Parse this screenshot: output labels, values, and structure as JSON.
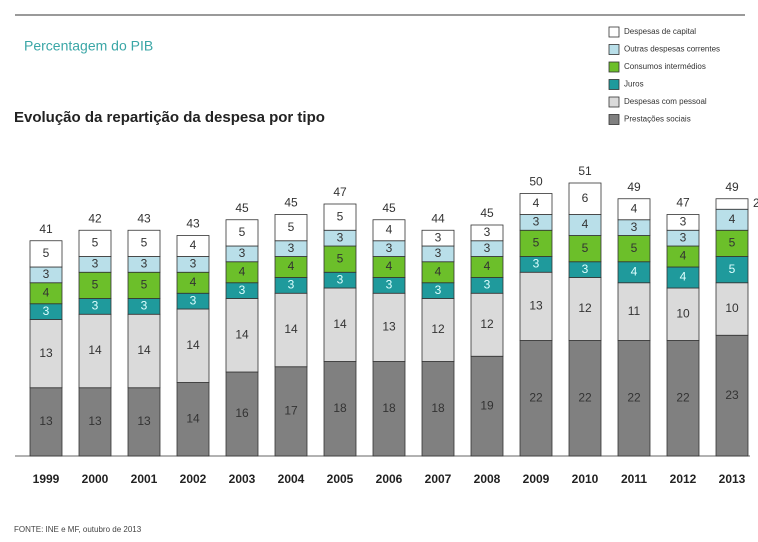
{
  "chart_data": {
    "type": "stacked-bar",
    "subtitle": "Percentagem do PIB",
    "title": "Evolução da repartição da despesa por tipo",
    "source": "FONTE: INE e MF, outubro de 2013",
    "categories": [
      "1999",
      "2000",
      "2001",
      "2002",
      "2003",
      "2004",
      "2005",
      "2006",
      "2007",
      "2008",
      "2009",
      "2010",
      "2011",
      "2012",
      "2013"
    ],
    "series": [
      {
        "name": "Prestações sociais",
        "color": "#808080",
        "values": [
          13,
          13,
          13,
          14,
          16,
          17,
          18,
          18,
          18,
          19,
          22,
          22,
          22,
          22,
          23
        ]
      },
      {
        "name": "Despesas com pessoal",
        "color": "#dadada",
        "values": [
          13,
          14,
          14,
          14,
          14,
          14,
          14,
          13,
          12,
          12,
          13,
          12,
          11,
          10,
          10
        ]
      },
      {
        "name": "Juros",
        "color": "#1f9a9c",
        "values": [
          3,
          3,
          3,
          3,
          3,
          3,
          3,
          3,
          3,
          3,
          3,
          3,
          4,
          4,
          5
        ]
      },
      {
        "name": "Consumos intermédios",
        "color": "#6cbf2a",
        "values": [
          4,
          5,
          5,
          4,
          4,
          4,
          5,
          4,
          4,
          4,
          5,
          5,
          5,
          4,
          5
        ]
      },
      {
        "name": "Outras despesas correntes",
        "color": "#b9dfe9",
        "values": [
          3,
          3,
          3,
          3,
          3,
          3,
          3,
          3,
          3,
          3,
          3,
          4,
          3,
          3,
          4
        ]
      },
      {
        "name": "Despesas de capital",
        "color": "#ffffff",
        "values": [
          5,
          5,
          5,
          4,
          5,
          5,
          5,
          4,
          3,
          3,
          4,
          6,
          4,
          3,
          2
        ]
      }
    ],
    "totals": [
      41,
      42,
      43,
      43,
      45,
      45,
      47,
      45,
      44,
      45,
      50,
      51,
      49,
      47,
      49
    ]
  }
}
